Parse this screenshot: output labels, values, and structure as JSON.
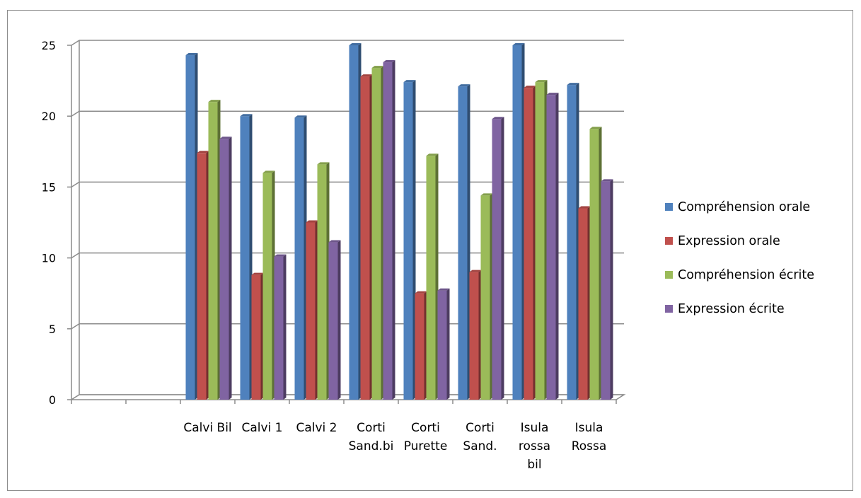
{
  "chart_data": {
    "type": "bar",
    "categories": [
      "",
      "",
      "Calvi Bil",
      "Calvi 1",
      "Calvi 2",
      "Corti\nSand.bi",
      "Corti\nPurette",
      "Corti\nSand.",
      "Isula\nrossa\nbil",
      "Isula\nRossa"
    ],
    "series": [
      {
        "name": "Compréhension orale",
        "color": "#4f81bd",
        "values": [
          null,
          null,
          24.3,
          20.0,
          19.9,
          25.0,
          22.4,
          22.1,
          25.0,
          22.2
        ]
      },
      {
        "name": "Expression orale",
        "color": "#c0504d",
        "values": [
          null,
          null,
          17.4,
          8.8,
          12.5,
          22.8,
          7.5,
          9.0,
          22.0,
          13.5
        ]
      },
      {
        "name": "Compréhension écrite",
        "color": "#9bbb59",
        "values": [
          null,
          null,
          21.0,
          16.0,
          16.6,
          23.4,
          17.2,
          14.4,
          22.4,
          19.1
        ]
      },
      {
        "name": "Expression écrite",
        "color": "#8064a2",
        "values": [
          null,
          null,
          18.4,
          10.1,
          11.1,
          23.8,
          7.7,
          19.8,
          21.5,
          15.4
        ]
      }
    ],
    "ylim": [
      0,
      25
    ],
    "yticks": [
      0,
      5,
      10,
      15,
      20,
      25
    ],
    "grid": true,
    "legend_position": "right"
  }
}
